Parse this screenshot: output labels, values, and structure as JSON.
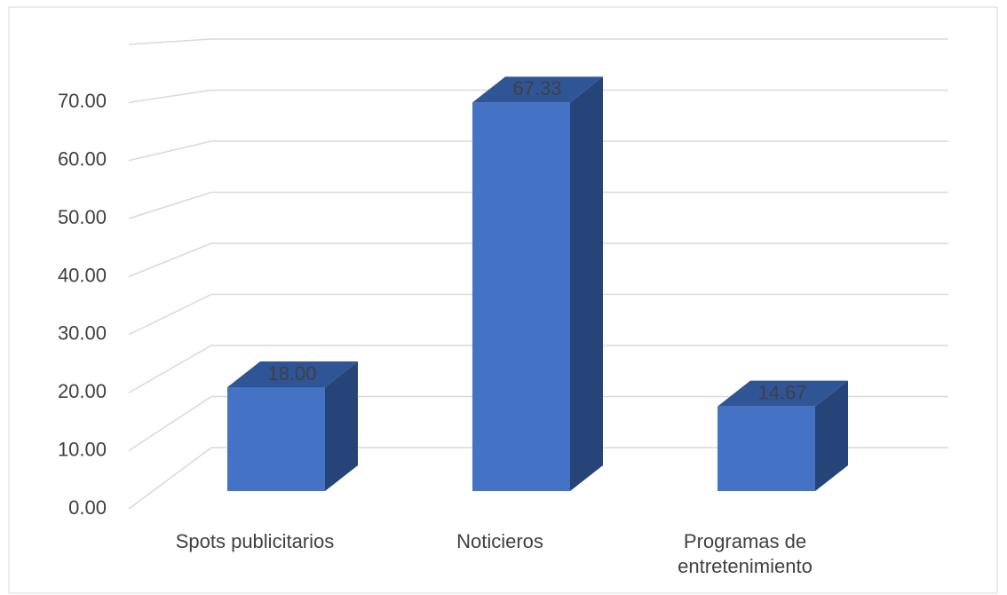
{
  "chart_data": {
    "type": "bar3d",
    "categories": [
      "Spots publicitarios",
      "Noticieros",
      "Programas de entretenimiento"
    ],
    "values": [
      18,
      67.33,
      14.67
    ],
    "value_labels": [
      "18.00",
      "67.33",
      "14.67"
    ],
    "color": "#4472c4",
    "ylim": [
      0,
      80
    ],
    "yticks": [
      {
        "value": 0,
        "label": "0.00"
      },
      {
        "value": 10,
        "label": "10.00"
      },
      {
        "value": 20,
        "label": "20.00"
      },
      {
        "value": 30,
        "label": "30.00"
      },
      {
        "value": 40,
        "label": "40.00"
      },
      {
        "value": 50,
        "label": "50.00"
      },
      {
        "value": 60,
        "label": "60.00"
      },
      {
        "value": 70,
        "label": "70.00"
      }
    ],
    "grid": true
  }
}
